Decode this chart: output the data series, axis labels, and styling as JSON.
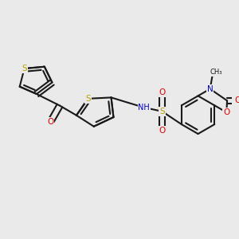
{
  "bg_color": "#eaeaea",
  "bond_color": "#1a1a1a",
  "bond_width": 1.5,
  "atom_colors": {
    "S": "#b8a000",
    "O": "#dd0000",
    "N": "#0000bb",
    "C": "#1a1a1a"
  },
  "fs": 7.5,
  "figsize": [
    3.0,
    3.0
  ],
  "dpi": 100,
  "xlim": [
    0,
    10
  ],
  "ylim": [
    0,
    10
  ]
}
